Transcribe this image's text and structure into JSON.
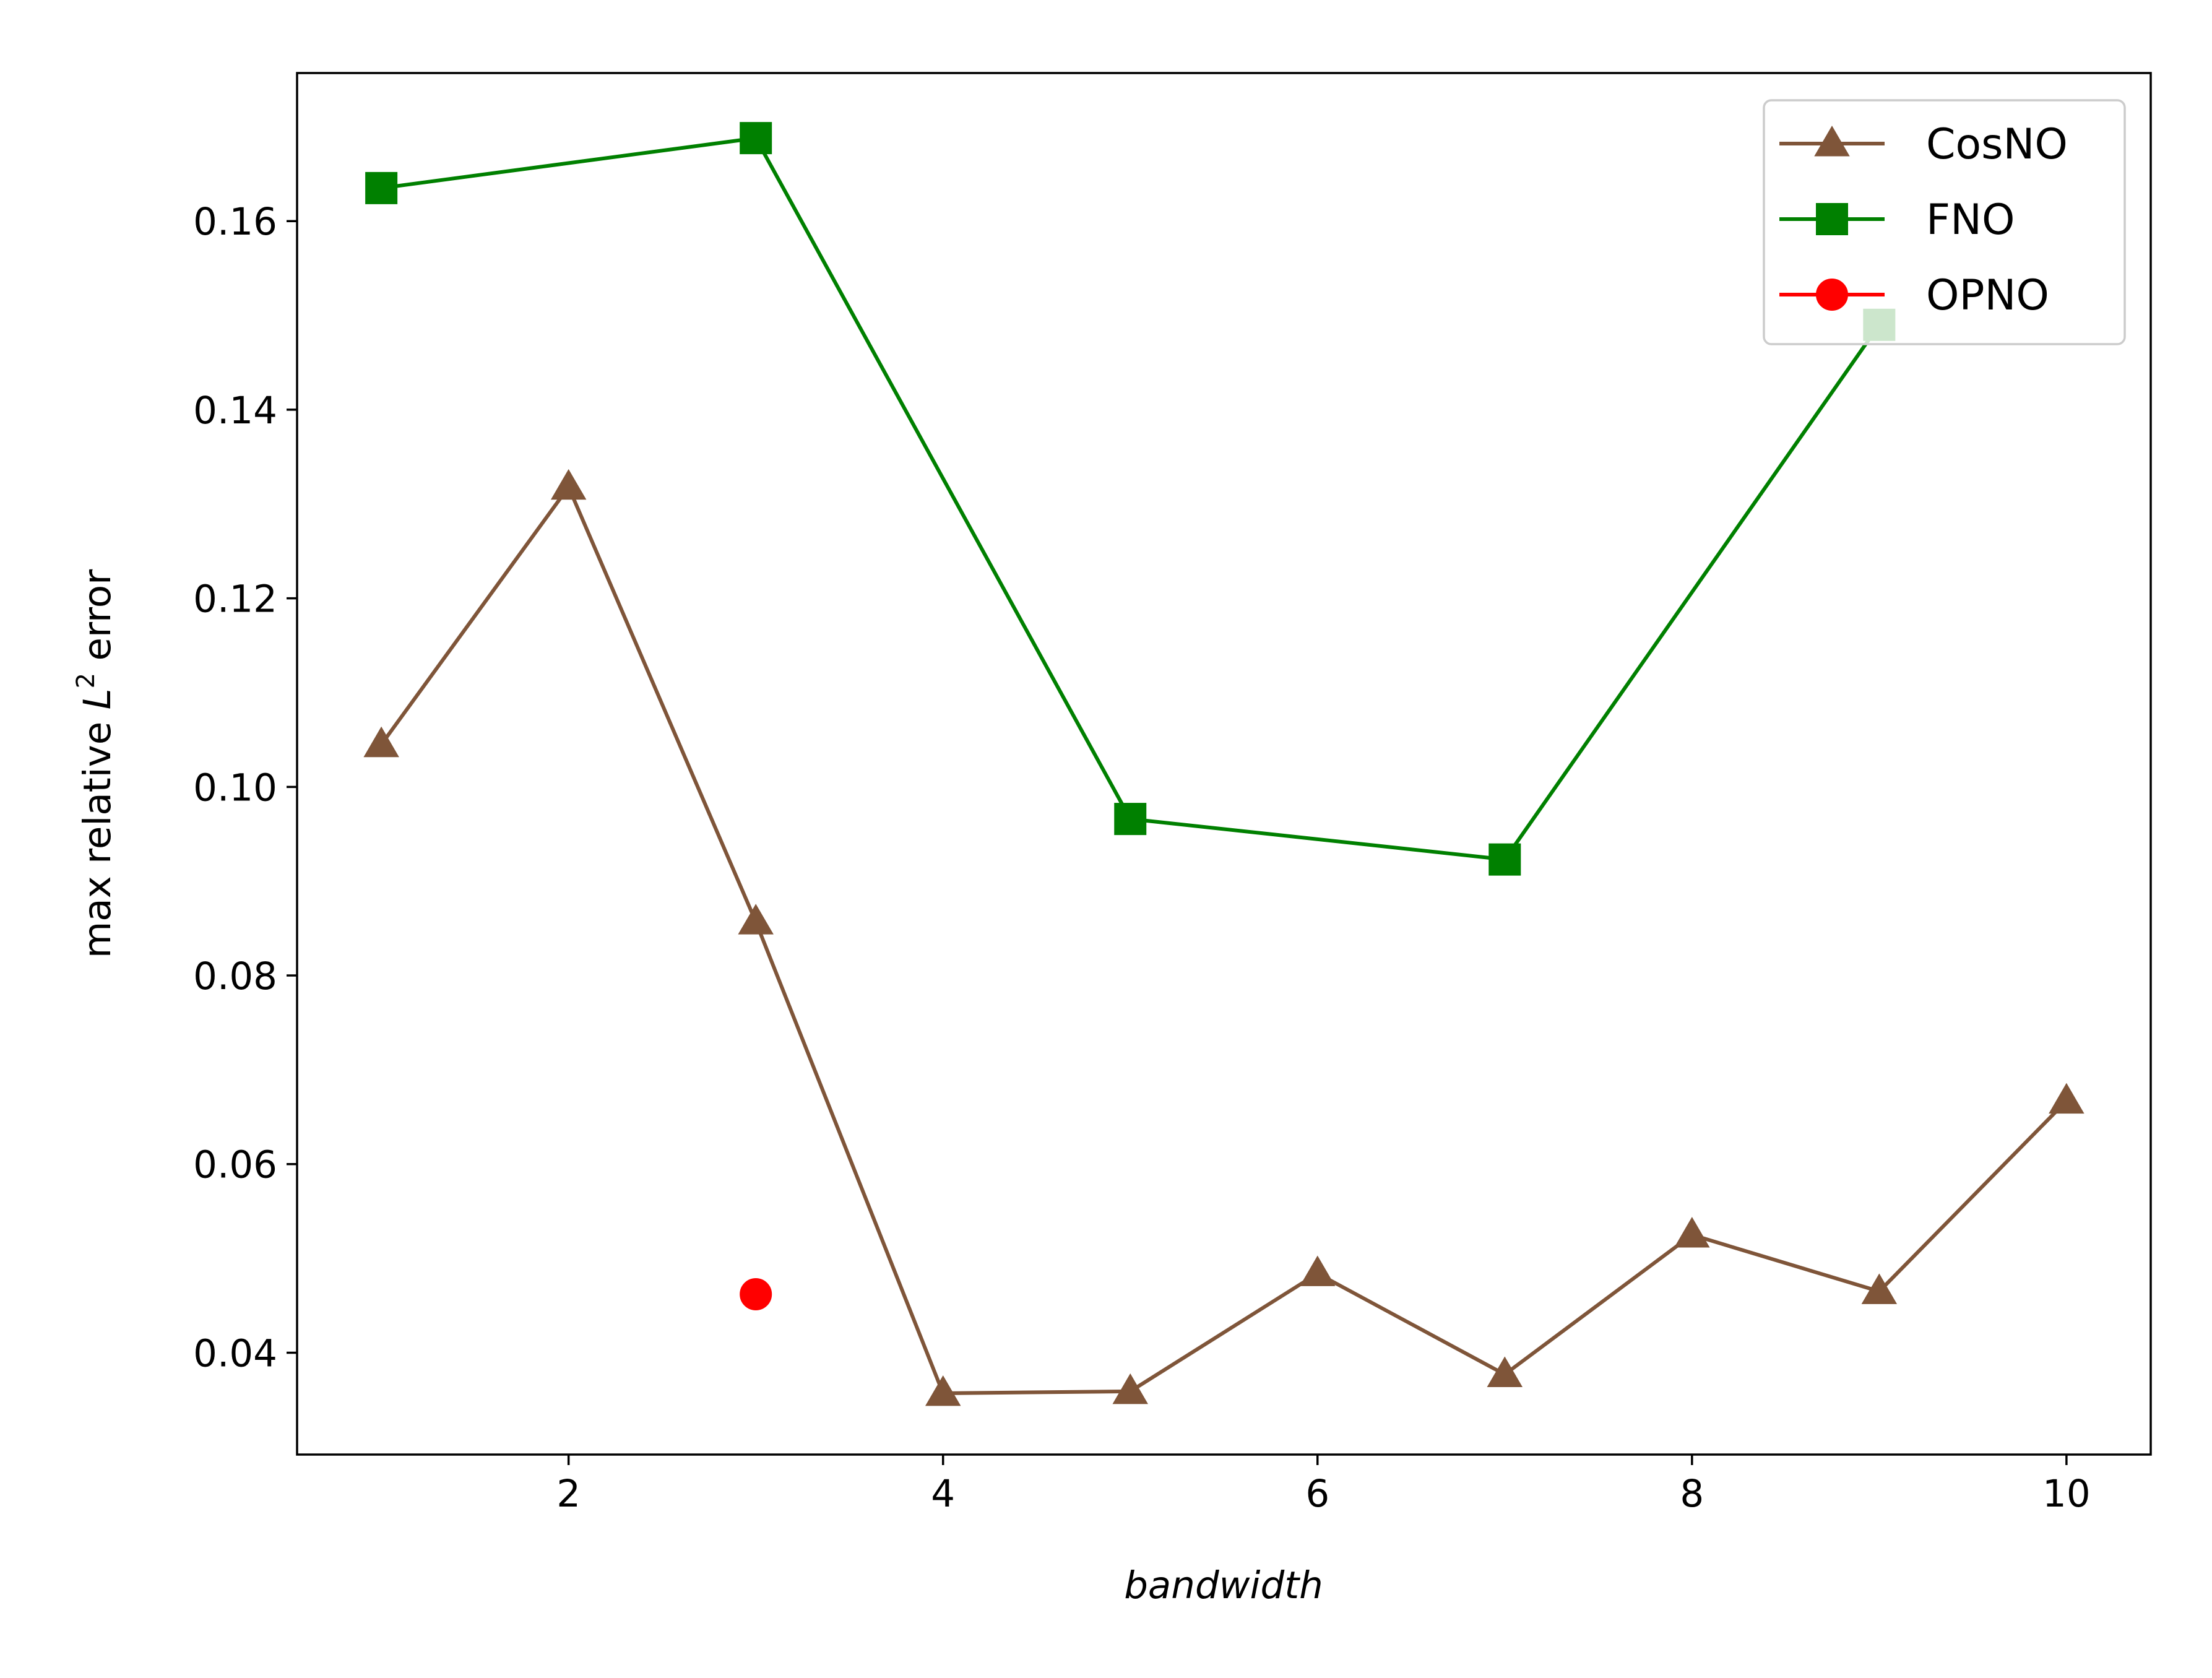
{
  "chart_data": {
    "type": "line",
    "title": "",
    "xlabel": "bandwidth",
    "ylabel_prefix": "max relative ",
    "ylabel_symbol": "L",
    "ylabel_superscript": "2",
    "ylabel_suffix": " error",
    "xlim": [
      0.55,
      10.45
    ],
    "ylim": [
      0.0292,
      0.1757
    ],
    "xticks": [
      2,
      4,
      6,
      8,
      10
    ],
    "xtick_labels": [
      "2",
      "4",
      "6",
      "8",
      "10"
    ],
    "yticks": [
      0.04,
      0.06,
      0.08,
      0.1,
      0.12,
      0.14,
      0.16
    ],
    "ytick_labels": [
      "0.04",
      "0.06",
      "0.08",
      "0.10",
      "0.12",
      "0.14",
      "0.16"
    ],
    "grid": false,
    "legend_position": "top-right",
    "series": [
      {
        "name": "CosNO",
        "color": "#7f5539",
        "marker": "triangle",
        "line": true,
        "x": [
          1,
          2,
          3,
          4,
          5,
          6,
          7,
          8,
          9,
          10
        ],
        "y": [
          0.1045,
          0.1318,
          0.0857,
          0.0357,
          0.0359,
          0.0484,
          0.0377,
          0.0525,
          0.0465,
          0.0667
        ]
      },
      {
        "name": "FNO",
        "color": "#008000",
        "marker": "square",
        "line": true,
        "x": [
          1,
          3,
          5,
          7,
          9
        ],
        "y": [
          0.1635,
          0.1688,
          0.0966,
          0.0923,
          0.149
        ]
      },
      {
        "name": "OPNO",
        "color": "#ff0000",
        "marker": "circle",
        "line": false,
        "x": [
          3
        ],
        "y": [
          0.0462
        ]
      }
    ]
  }
}
